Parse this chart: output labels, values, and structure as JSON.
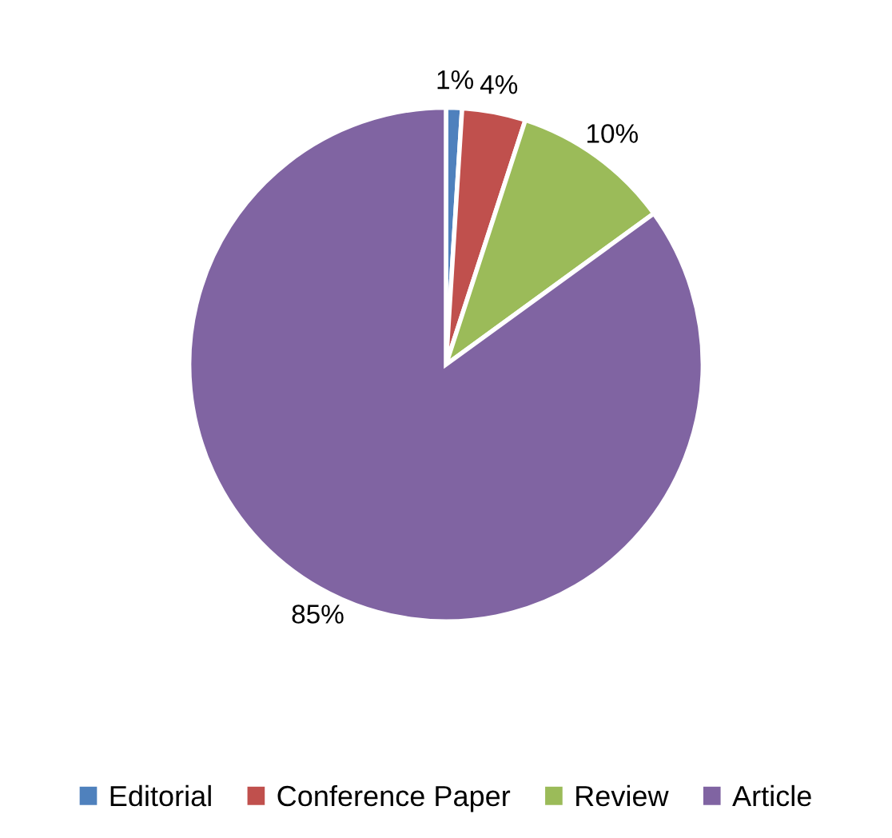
{
  "chart_data": {
    "type": "pie",
    "categories": [
      "Editorial",
      "Conference Paper",
      "Review",
      "Article"
    ],
    "values": [
      1,
      4,
      10,
      85
    ],
    "value_labels": [
      "1%",
      "4%",
      "10%",
      "85%"
    ],
    "colors": [
      "#4f81bd",
      "#c0504d",
      "#9bbb59",
      "#8064a2"
    ],
    "legend": "bottom"
  }
}
